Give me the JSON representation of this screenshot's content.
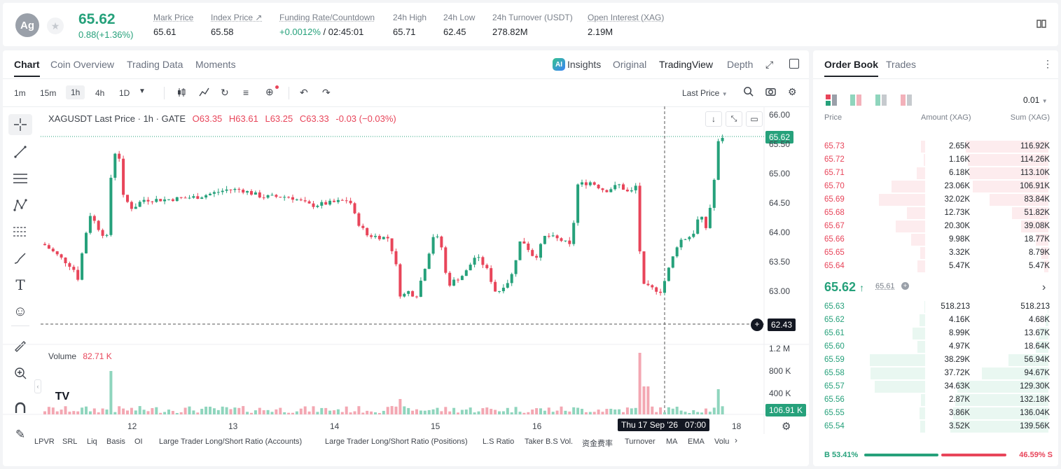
{
  "header": {
    "avatar": "Ag",
    "price": "65.62",
    "change": "0.88(+1.36%)",
    "stats": [
      {
        "label": "Mark Price",
        "value": "65.61"
      },
      {
        "label": "Index Price ↗",
        "value": "65.58"
      },
      {
        "label": "Funding Rate/Countdown",
        "value_a": "+0.0012%",
        "value_b": " / 02:45:01"
      },
      {
        "label": "24h High",
        "value": "65.71"
      },
      {
        "label": "24h Low",
        "value": "62.45"
      },
      {
        "label": "24h Turnover (USDT)",
        "value": "278.82M"
      },
      {
        "label": "Open Interest (XAG)",
        "value": "2.19M"
      }
    ]
  },
  "chart_tabs": [
    "Chart",
    "Coin Overview",
    "Trading Data",
    "Moments"
  ],
  "view_tabs": {
    "insights": "Insights",
    "original": "Original",
    "tradingview": "TradingView",
    "depth": "Depth"
  },
  "timeframes": [
    "1m",
    "15m",
    "1h",
    "4h",
    "1D"
  ],
  "toolbar": {
    "last_price": "Last Price"
  },
  "legend": {
    "symbol": "XAGUSDT Last Price · 1h · GATE",
    "o": "O63.35",
    "h": "H63.61",
    "l": "L63.25",
    "c": "C63.33",
    "chg": "-0.03 (−0.03%)"
  },
  "volume_legend": {
    "label": "Volume",
    "value": "82.71 K"
  },
  "price_axis": [
    "66.00",
    "65.50",
    "65.00",
    "64.50",
    "64.00",
    "63.50",
    "63.00"
  ],
  "volume_axis": [
    "1.2 M",
    "800 K",
    "400 K"
  ],
  "price_tags": {
    "last": "65.62",
    "low": "62.43",
    "volume": "106.91 K"
  },
  "time_axis": [
    "12",
    "13",
    "14",
    "15",
    "16",
    "18"
  ],
  "crosshair_time": "Thu 17 Sep '26   07:00",
  "indicators": [
    "LPVR",
    "SRL",
    "Liq",
    "Basis",
    "OI",
    "Large Trader Long/Short Ratio (Accounts)",
    "Large Trader Long/Short Ratio (Positions)",
    "L.S Ratio",
    "Taker B.S Vol.",
    "资金费率",
    "Turnover",
    "MA",
    "EMA",
    "Volu"
  ],
  "orderbook": {
    "tabs": [
      "Order Book",
      "Trades"
    ],
    "precision": "0.01",
    "columns": [
      "Price",
      "Amount (XAG)",
      "Sum (XAG)"
    ],
    "asks": [
      {
        "price": "65.73",
        "amount": "2.65K",
        "sum": "116.92K",
        "amt_frac": 0.05,
        "sum_frac": 0.84
      },
      {
        "price": "65.72",
        "amount": "1.16K",
        "sum": "114.26K",
        "amt_frac": 0.02,
        "sum_frac": 0.82
      },
      {
        "price": "65.71",
        "amount": "6.18K",
        "sum": "113.10K",
        "amt_frac": 0.1,
        "sum_frac": 0.81
      },
      {
        "price": "65.70",
        "amount": "23.06K",
        "sum": "106.91K",
        "amt_frac": 0.4,
        "sum_frac": 0.77
      },
      {
        "price": "65.69",
        "amount": "32.02K",
        "sum": "83.84K",
        "amt_frac": 0.55,
        "sum_frac": 0.6
      },
      {
        "price": "65.68",
        "amount": "12.73K",
        "sum": "51.82K",
        "amt_frac": 0.22,
        "sum_frac": 0.37
      },
      {
        "price": "65.67",
        "amount": "20.30K",
        "sum": "39.08K",
        "amt_frac": 0.35,
        "sum_frac": 0.28
      },
      {
        "price": "65.66",
        "amount": "9.98K",
        "sum": "18.77K",
        "amt_frac": 0.17,
        "sum_frac": 0.13
      },
      {
        "price": "65.65",
        "amount": "3.32K",
        "sum": "8.79K",
        "amt_frac": 0.06,
        "sum_frac": 0.07
      },
      {
        "price": "65.64",
        "amount": "5.47K",
        "sum": "5.47K",
        "amt_frac": 0.09,
        "sum_frac": 0.04
      }
    ],
    "mid": {
      "price": "65.62",
      "mark": "65.61"
    },
    "bids": [
      {
        "price": "65.63",
        "amount": "518.213",
        "sum": "518.213",
        "amt_frac": 0.01,
        "sum_frac": 0.01
      },
      {
        "price": "65.62",
        "amount": "4.16K",
        "sum": "4.68K",
        "amt_frac": 0.07,
        "sum_frac": 0.03
      },
      {
        "price": "65.61",
        "amount": "8.99K",
        "sum": "13.67K",
        "amt_frac": 0.15,
        "sum_frac": 0.1
      },
      {
        "price": "65.60",
        "amount": "4.97K",
        "sum": "18.64K",
        "amt_frac": 0.09,
        "sum_frac": 0.13
      },
      {
        "price": "65.59",
        "amount": "38.29K",
        "sum": "56.94K",
        "amt_frac": 0.66,
        "sum_frac": 0.41
      },
      {
        "price": "65.58",
        "amount": "37.72K",
        "sum": "94.67K",
        "amt_frac": 0.65,
        "sum_frac": 0.68
      },
      {
        "price": "65.57",
        "amount": "34.63K",
        "sum": "129.30K",
        "amt_frac": 0.6,
        "sum_frac": 0.93
      },
      {
        "price": "65.56",
        "amount": "2.87K",
        "sum": "132.18K",
        "amt_frac": 0.05,
        "sum_frac": 0.95
      },
      {
        "price": "65.55",
        "amount": "3.86K",
        "sum": "136.04K",
        "amt_frac": 0.07,
        "sum_frac": 0.97
      },
      {
        "price": "65.54",
        "amount": "3.52K",
        "sum": "139.56K",
        "amt_frac": 0.06,
        "sum_frac": 1.0
      }
    ],
    "ratio": {
      "buy": "B 53.41%",
      "sell": "46.59% S",
      "buy_frac": 0.5341
    }
  },
  "colors": {
    "up": "#26a17b",
    "down": "#e8455a",
    "up_bg": "#e9f7f1",
    "down_bg": "#fdecee"
  }
}
